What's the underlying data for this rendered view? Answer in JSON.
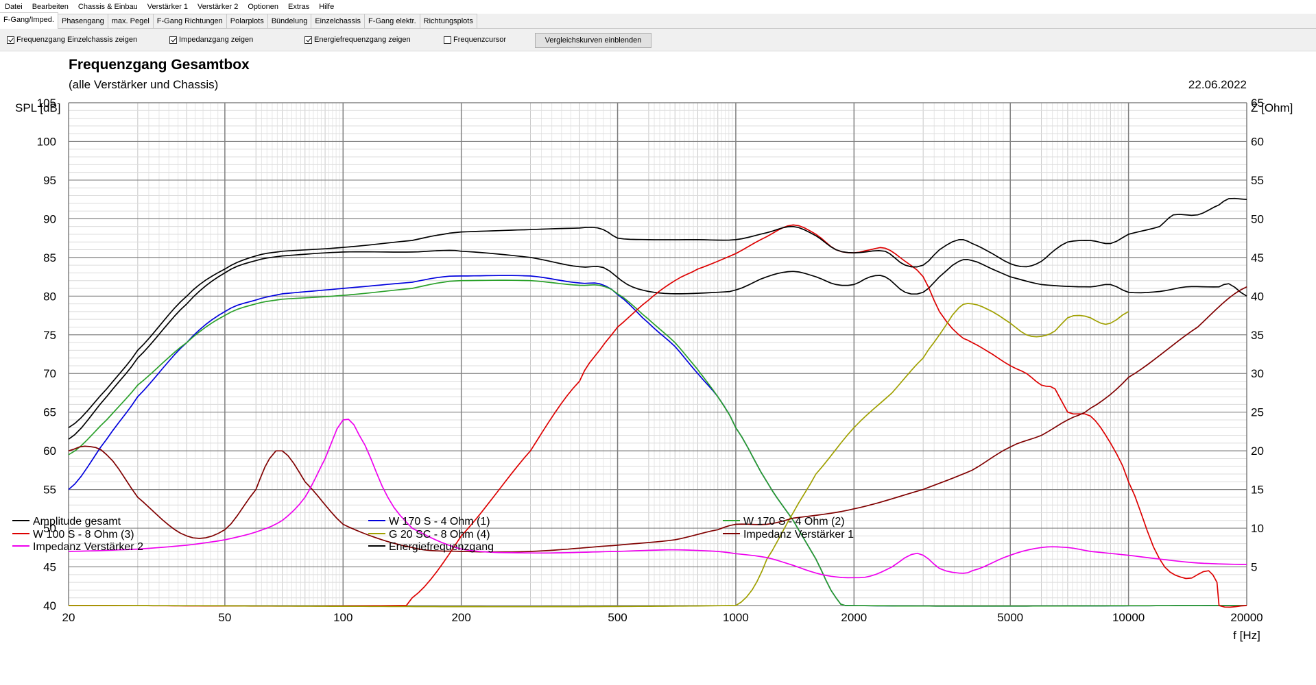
{
  "menu": [
    "Datei",
    "Bearbeiten",
    "Chassis & Einbau",
    "Verstärker 1",
    "Verstärker 2",
    "Optionen",
    "Extras",
    "Hilfe"
  ],
  "tabs": [
    "F-Gang/Imped.",
    "Phasengang",
    "max. Pegel",
    "F-Gang Richtungen",
    "Polarplots",
    "Bündelung",
    "Einzelchassis",
    "F-Gang elektr.",
    "Richtungsplots"
  ],
  "active_tab": 0,
  "toolbar": {
    "cb1": {
      "label": "Frequenzgang Einzelchassis zeigen",
      "checked": true
    },
    "cb2": {
      "label": "Impedanzgang zeigen",
      "checked": true
    },
    "cb3": {
      "label": "Energiefrequenzgang zeigen",
      "checked": true
    },
    "cb4": {
      "label": "Frequenzcursor",
      "checked": false
    },
    "button": "Vergleichskurven einblenden"
  },
  "chart_data": {
    "type": "line",
    "title": "Frequenzgang Gesamtbox",
    "subtitle": "(alle Verstärker und Chassis)",
    "date": "22.06.2022",
    "ylabel": "SPL [dB]",
    "y2label": "Z [Ohm]",
    "xlabel": "f [Hz]",
    "xscale": "log",
    "xlim": [
      20,
      20000
    ],
    "ylim": [
      40,
      105
    ],
    "y2lim": [
      0,
      65
    ],
    "xticks": [
      20,
      50,
      100,
      200,
      500,
      1000,
      2000,
      5000,
      10000,
      20000
    ],
    "yticks": [
      40,
      45,
      50,
      55,
      60,
      65,
      70,
      75,
      80,
      85,
      90,
      95,
      100,
      105
    ],
    "y2ticks": [
      5,
      10,
      15,
      20,
      25,
      30,
      35,
      40,
      45,
      50,
      55,
      60,
      65
    ],
    "legend_position": "bottom",
    "series": [
      {
        "name": "Amplitude gesamt",
        "color": "#000000",
        "axis": "left",
        "points": [
          [
            20,
            61.5
          ],
          [
            25,
            67
          ],
          [
            30,
            72
          ],
          [
            40,
            79
          ],
          [
            50,
            83
          ],
          [
            60,
            84.6
          ],
          [
            70,
            85.2
          ],
          [
            100,
            85.7
          ],
          [
            150,
            85.7
          ],
          [
            180,
            85.9
          ],
          [
            200,
            85.8
          ],
          [
            300,
            85
          ],
          [
            400,
            83.8
          ],
          [
            460,
            83.7
          ],
          [
            530,
            81.5
          ],
          [
            600,
            80.6
          ],
          [
            700,
            80.3
          ],
          [
            900,
            80.5
          ],
          [
            1000,
            80.8
          ],
          [
            1200,
            82.5
          ],
          [
            1400,
            83.2
          ],
          [
            1600,
            82.5
          ],
          [
            1800,
            81.5
          ],
          [
            2000,
            81.5
          ],
          [
            2200,
            82.5
          ],
          [
            2400,
            82.5
          ],
          [
            2700,
            80.5
          ],
          [
            3000,
            80.5
          ],
          [
            3300,
            82.5
          ],
          [
            3700,
            84.5
          ],
          [
            4000,
            84.6
          ],
          [
            4500,
            83.5
          ],
          [
            5000,
            82.5
          ],
          [
            6000,
            81.5
          ],
          [
            8000,
            81.2
          ],
          [
            9000,
            81.5
          ],
          [
            10000,
            80.5
          ],
          [
            12000,
            80.6
          ],
          [
            14000,
            81.2
          ],
          [
            17000,
            81.2
          ],
          [
            18000,
            81.6
          ],
          [
            20000,
            80
          ]
        ]
      },
      {
        "name": "W 170 S - 4 Ohm (1)",
        "color": "#0000dd",
        "axis": "left",
        "points": [
          [
            20,
            55
          ],
          [
            25,
            61.5
          ],
          [
            30,
            67
          ],
          [
            40,
            74
          ],
          [
            50,
            78
          ],
          [
            60,
            79.5
          ],
          [
            70,
            80.3
          ],
          [
            100,
            81
          ],
          [
            150,
            81.8
          ],
          [
            180,
            82.5
          ],
          [
            200,
            82.6
          ],
          [
            300,
            82.6
          ],
          [
            400,
            81.7
          ],
          [
            450,
            81.6
          ],
          [
            500,
            80.2
          ],
          [
            600,
            76.5
          ],
          [
            700,
            73.5
          ],
          [
            800,
            70
          ],
          [
            900,
            67
          ],
          [
            1000,
            63
          ],
          [
            1200,
            56
          ],
          [
            1400,
            51
          ],
          [
            1600,
            46
          ],
          [
            1800,
            41
          ],
          [
            1900,
            40
          ],
          [
            20000,
            40
          ]
        ]
      },
      {
        "name": "W 170 S - 4 Ohm (2)",
        "color": "#2aa02a",
        "axis": "left",
        "points": [
          [
            20,
            59.5
          ],
          [
            25,
            64
          ],
          [
            30,
            68.5
          ],
          [
            40,
            74
          ],
          [
            50,
            77.5
          ],
          [
            60,
            79
          ],
          [
            70,
            79.6
          ],
          [
            100,
            80.1
          ],
          [
            150,
            81
          ],
          [
            180,
            81.8
          ],
          [
            200,
            82
          ],
          [
            300,
            82
          ],
          [
            400,
            81.4
          ],
          [
            450,
            81.4
          ],
          [
            500,
            80.3
          ],
          [
            600,
            77
          ],
          [
            700,
            74
          ],
          [
            800,
            70.5
          ],
          [
            900,
            67
          ],
          [
            1000,
            63
          ],
          [
            1200,
            56
          ],
          [
            1400,
            51
          ],
          [
            1600,
            46
          ],
          [
            1800,
            41
          ],
          [
            1900,
            40
          ],
          [
            20000,
            40
          ]
        ]
      },
      {
        "name": "W 100 S - 8 Ohm (3)",
        "color": "#dd0000",
        "axis": "left",
        "points": [
          [
            20,
            40
          ],
          [
            140,
            40
          ],
          [
            150,
            41
          ],
          [
            200,
            49
          ],
          [
            300,
            60
          ],
          [
            400,
            69
          ],
          [
            450,
            73
          ],
          [
            500,
            76
          ],
          [
            600,
            79.5
          ],
          [
            700,
            82
          ],
          [
            800,
            83.5
          ],
          [
            1000,
            85.5
          ],
          [
            1200,
            87.7
          ],
          [
            1400,
            89.2
          ],
          [
            1600,
            88
          ],
          [
            1800,
            86
          ],
          [
            2000,
            85.6
          ],
          [
            2200,
            86
          ],
          [
            2400,
            86.2
          ],
          [
            2700,
            84.5
          ],
          [
            3000,
            82.5
          ],
          [
            3300,
            78
          ],
          [
            3700,
            75
          ],
          [
            4000,
            74
          ],
          [
            4500,
            72.5
          ],
          [
            5000,
            71
          ],
          [
            5500,
            70
          ],
          [
            6000,
            68.5
          ],
          [
            6500,
            68
          ],
          [
            7000,
            65
          ],
          [
            8000,
            64.5
          ],
          [
            9000,
            61
          ],
          [
            10000,
            56
          ],
          [
            12000,
            46
          ],
          [
            14000,
            43.5
          ],
          [
            15000,
            44
          ],
          [
            16000,
            44.5
          ],
          [
            16800,
            43
          ],
          [
            17000,
            40
          ],
          [
            20000,
            40
          ]
        ]
      },
      {
        "name": "G 20 SC - 8 Ohm (4)",
        "color": "#a0a000",
        "axis": "left",
        "points": [
          [
            20,
            40
          ],
          [
            1000,
            40
          ],
          [
            1100,
            42
          ],
          [
            1200,
            46
          ],
          [
            1400,
            52
          ],
          [
            1600,
            57
          ],
          [
            2000,
            63
          ],
          [
            2500,
            67.5
          ],
          [
            3000,
            72
          ],
          [
            3300,
            75
          ],
          [
            3700,
            78.5
          ],
          [
            4000,
            79
          ],
          [
            4500,
            78
          ],
          [
            5000,
            76.5
          ],
          [
            5500,
            75
          ],
          [
            6000,
            74.8
          ],
          [
            6500,
            75.5
          ],
          [
            7000,
            77.2
          ],
          [
            7500,
            77.5
          ],
          [
            8000,
            77.2
          ],
          [
            8500,
            76.5
          ],
          [
            9000,
            76.5
          ],
          [
            10000,
            78
          ]
        ]
      },
      {
        "name": "Impedanz Verstärker 1",
        "color": "#800000",
        "axis": "right",
        "points": [
          [
            20,
            20
          ],
          [
            22,
            20.6
          ],
          [
            25,
            19.5
          ],
          [
            30,
            14
          ],
          [
            40,
            9
          ],
          [
            50,
            9.8
          ],
          [
            60,
            15
          ],
          [
            65,
            19
          ],
          [
            70,
            20
          ],
          [
            80,
            16
          ],
          [
            100,
            10.5
          ],
          [
            150,
            7.5
          ],
          [
            200,
            7
          ],
          [
            300,
            7
          ],
          [
            500,
            7.8
          ],
          [
            700,
            8.5
          ],
          [
            900,
            9.8
          ],
          [
            1000,
            10.5
          ],
          [
            1200,
            10.5
          ],
          [
            1400,
            11.3
          ],
          [
            2000,
            12.5
          ],
          [
            3000,
            15
          ],
          [
            4000,
            17.5
          ],
          [
            5000,
            20.5
          ],
          [
            6000,
            22
          ],
          [
            7000,
            24
          ],
          [
            8000,
            25.5
          ],
          [
            10000,
            29.5
          ],
          [
            15000,
            36
          ],
          [
            20000,
            41.2
          ]
        ]
      },
      {
        "name": "Impedanz Verstärker 2",
        "color": "#ee00ee",
        "axis": "right",
        "points": [
          [
            20,
            7
          ],
          [
            30,
            7.3
          ],
          [
            40,
            7.8
          ],
          [
            50,
            8.5
          ],
          [
            60,
            9.5
          ],
          [
            70,
            11
          ],
          [
            80,
            14
          ],
          [
            90,
            19
          ],
          [
            100,
            24
          ],
          [
            110,
            22
          ],
          [
            130,
            14
          ],
          [
            150,
            10
          ],
          [
            200,
            7.3
          ],
          [
            300,
            6.8
          ],
          [
            500,
            7
          ],
          [
            700,
            7.2
          ],
          [
            900,
            7
          ],
          [
            1000,
            6.7
          ],
          [
            1200,
            6.2
          ],
          [
            1400,
            5.2
          ],
          [
            1600,
            4.2
          ],
          [
            1800,
            3.7
          ],
          [
            2000,
            3.6
          ],
          [
            2200,
            3.8
          ],
          [
            2500,
            5
          ],
          [
            2800,
            6.6
          ],
          [
            3000,
            6.5
          ],
          [
            3300,
            4.8
          ],
          [
            3700,
            4.2
          ],
          [
            4000,
            4.5
          ],
          [
            5000,
            6.5
          ],
          [
            6000,
            7.5
          ],
          [
            7000,
            7.5
          ],
          [
            8000,
            7
          ],
          [
            10000,
            6.5
          ],
          [
            12000,
            6
          ],
          [
            15000,
            5.5
          ],
          [
            20000,
            5.3
          ]
        ]
      },
      {
        "name": "Energiefrequenzgang",
        "color": "#000000",
        "axis": "left",
        "points": [
          [
            20,
            63
          ],
          [
            25,
            68
          ],
          [
            30,
            73
          ],
          [
            40,
            80
          ],
          [
            50,
            83.5
          ],
          [
            60,
            85.2
          ],
          [
            70,
            85.8
          ],
          [
            100,
            86.3
          ],
          [
            150,
            87.2
          ],
          [
            180,
            88
          ],
          [
            200,
            88.3
          ],
          [
            300,
            88.6
          ],
          [
            400,
            88.8
          ],
          [
            430,
            88.9
          ],
          [
            460,
            88.6
          ],
          [
            500,
            87.5
          ],
          [
            600,
            87.3
          ],
          [
            800,
            87.3
          ],
          [
            1000,
            87.3
          ],
          [
            1200,
            88.2
          ],
          [
            1400,
            89
          ],
          [
            1600,
            87.8
          ],
          [
            1800,
            86
          ],
          [
            2000,
            85.6
          ],
          [
            2400,
            85.8
          ],
          [
            2700,
            84
          ],
          [
            3000,
            84
          ],
          [
            3300,
            86
          ],
          [
            3700,
            87.3
          ],
          [
            4000,
            86.8
          ],
          [
            4500,
            85.5
          ],
          [
            5000,
            84.2
          ],
          [
            5500,
            83.8
          ],
          [
            6000,
            84.5
          ],
          [
            6500,
            86
          ],
          [
            7000,
            87
          ],
          [
            8000,
            87.2
          ],
          [
            9000,
            86.8
          ],
          [
            10000,
            88
          ],
          [
            12000,
            89
          ],
          [
            13000,
            90.5
          ],
          [
            15000,
            90.5
          ],
          [
            17000,
            91.8
          ],
          [
            18000,
            92.6
          ],
          [
            20000,
            92.5
          ]
        ]
      }
    ]
  }
}
